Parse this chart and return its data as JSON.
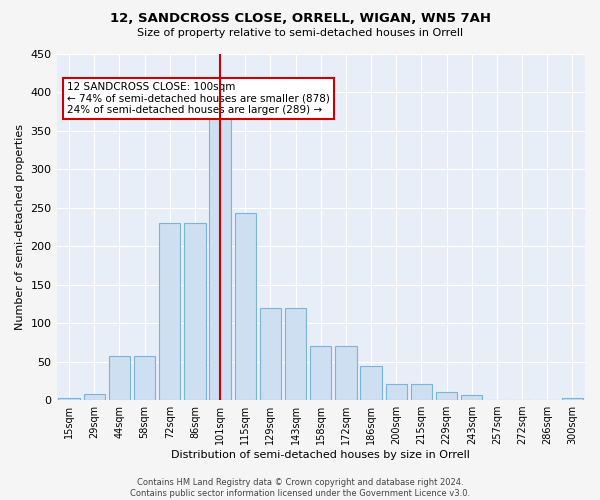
{
  "title": "12, SANDCROSS CLOSE, ORRELL, WIGAN, WN5 7AH",
  "subtitle": "Size of property relative to semi-detached houses in Orrell",
  "xlabel": "Distribution of semi-detached houses by size in Orrell",
  "ylabel": "Number of semi-detached properties",
  "bin_labels": [
    "15sqm",
    "29sqm",
    "44sqm",
    "58sqm",
    "72sqm",
    "86sqm",
    "101sqm",
    "115sqm",
    "129sqm",
    "143sqm",
    "158sqm",
    "172sqm",
    "186sqm",
    "200sqm",
    "215sqm",
    "229sqm",
    "243sqm",
    "257sqm",
    "272sqm",
    "286sqm",
    "300sqm"
  ],
  "bin_edges": [
    15,
    29,
    44,
    58,
    72,
    86,
    101,
    115,
    129,
    143,
    158,
    172,
    186,
    200,
    215,
    229,
    243,
    257,
    272,
    286,
    300
  ],
  "values": [
    3,
    8,
    57,
    57,
    230,
    230,
    375,
    243,
    120,
    120,
    70,
    70,
    44,
    21,
    21,
    10,
    7,
    0,
    0,
    0,
    3
  ],
  "bar_color": "#cddff0",
  "bar_edge_color": "#7ab4d8",
  "vline_x": 101,
  "vline_color": "#cc0000",
  "annotation_text": "12 SANDCROSS CLOSE: 100sqm\n← 74% of semi-detached houses are smaller (878)\n24% of semi-detached houses are larger (289) →",
  "annotation_box_color": "#ffffff",
  "annotation_box_edge": "#cc0000",
  "ylim": [
    0,
    450
  ],
  "yticks": [
    0,
    50,
    100,
    150,
    200,
    250,
    300,
    350,
    400,
    450
  ],
  "bg_color": "#e8eef8",
  "grid_color": "#d0d8e8",
  "fig_bg": "#f5f5f5",
  "footer": "Contains HM Land Registry data © Crown copyright and database right 2024.\nContains public sector information licensed under the Government Licence v3.0."
}
